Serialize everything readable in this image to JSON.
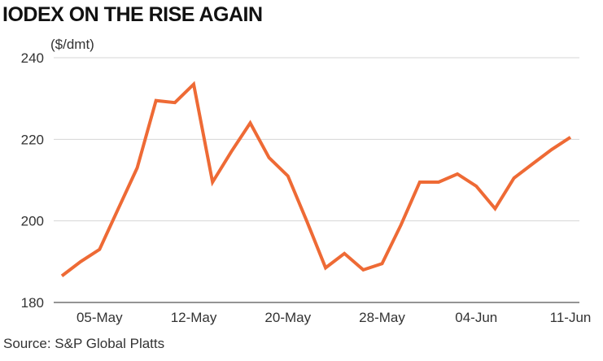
{
  "chart_data": {
    "type": "line",
    "title": "IODEX ON THE RISE AGAIN",
    "unit_label": "($/dmt)",
    "source": "Source: S&P Global Platts",
    "ylim": [
      180,
      240
    ],
    "yticks": [
      180,
      200,
      220,
      240
    ],
    "grid": true,
    "line_color": "#ee6a35",
    "xtick_labels": [
      "05-May",
      "12-May",
      "20-May",
      "28-May",
      "04-Jun",
      "11-Jun"
    ],
    "xtick_index": [
      2,
      7,
      12,
      17,
      22,
      27
    ],
    "series": [
      {
        "values": [
          186.5,
          190.0,
          193.0,
          203.0,
          213.0,
          229.5,
          229.0,
          233.5,
          209.5,
          217.0,
          224.0,
          215.5,
          211.0,
          200.0,
          188.5,
          192.0,
          188.0,
          189.5,
          199.0,
          209.5,
          209.5,
          211.5,
          208.5,
          203.0,
          210.5,
          214.0,
          217.5,
          220.5
        ]
      }
    ]
  }
}
